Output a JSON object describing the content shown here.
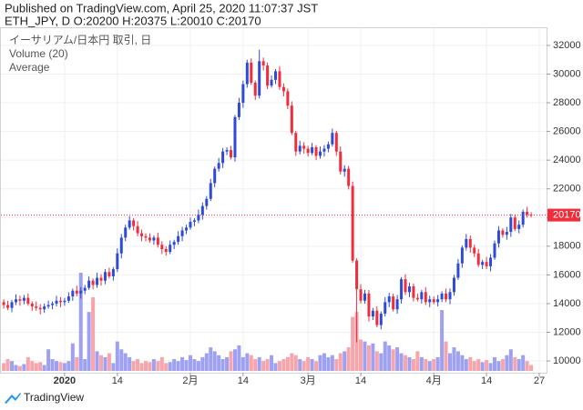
{
  "header": {
    "published": "Published on TradingView.com, April 25, 2020 11:07:37 JST",
    "symbol_line": "ETH_JPY, D O:20200 H:20375 L:20010 C:20170"
  },
  "footer": {
    "brand": "TradingView"
  },
  "chart_data": {
    "type": "candlestick",
    "legend": [
      "イーサリアム/日本円 取引, 日",
      "Volume (20)",
      "Average"
    ],
    "up_color": "#2e4bd8",
    "down_color": "#ef2d3b",
    "volume_up_color": "#9ea0f2",
    "volume_down_color": "#f5a5ab",
    "last_price_color": "#ef2d3b",
    "grid": true,
    "xlim": [
      -0.7,
      133.8
    ],
    "xticks": [
      {
        "value": 15,
        "label": "2020"
      },
      {
        "value": 28,
        "label": "14"
      },
      {
        "value": 46,
        "label": "2月"
      },
      {
        "value": 59,
        "label": "14"
      },
      {
        "value": 75,
        "label": "3月"
      },
      {
        "value": 88,
        "label": "14"
      },
      {
        "value": 106,
        "label": "4月"
      },
      {
        "value": 119,
        "label": "14"
      },
      {
        "value": 132,
        "label": "27"
      }
    ],
    "ylim": [
      9180,
      33200
    ],
    "yticks": [
      10000,
      12000,
      14000,
      16000,
      18000,
      20000,
      22000,
      24000,
      26000,
      28000,
      30000,
      32000
    ],
    "open": [
      14100,
      13900,
      13700,
      14100,
      14300,
      14200,
      14400,
      14000,
      13800,
      13700,
      13600,
      13800,
      13900,
      14000,
      14200,
      14100,
      14200,
      14500,
      14900,
      14700,
      14900,
      15100,
      15600,
      15300,
      15800,
      15600,
      16200,
      15900,
      16400,
      17500,
      18600,
      19300,
      19800,
      19400,
      18900,
      18700,
      18600,
      18400,
      18600,
      18100,
      17800,
      17600,
      18100,
      18300,
      18700,
      19100,
      19300,
      19700,
      19800,
      20200,
      20800,
      21300,
      22400,
      23400,
      23800,
      24600,
      24700,
      24200,
      27000,
      28000,
      29300,
      30800,
      29400,
      28500,
      30900,
      30600,
      29200,
      29600,
      30200,
      29100,
      28800,
      27800,
      25900,
      24600,
      25000,
      24800,
      24500,
      24900,
      24300,
      24600,
      24800,
      25100,
      25900,
      24600,
      23200,
      23400,
      22200,
      17000,
      15000,
      14200,
      14700,
      13100,
      13500,
      12500,
      13300,
      14100,
      14500,
      13600,
      14300,
      15700,
      14800,
      15200,
      14400,
      14300,
      14800,
      14100,
      14300,
      14100,
      14300,
      14700,
      14300,
      14800,
      15800,
      16800,
      17900,
      18500,
      17900,
      17500,
      16700,
      16900,
      16600,
      17200,
      18200,
      19100,
      18800,
      19000,
      20000,
      19200,
      19500,
      20400,
      20200
    ],
    "high": [
      14300,
      14200,
      14250,
      14650,
      14550,
      14600,
      14700,
      14150,
      14150,
      13950,
      14000,
      14200,
      14150,
      14550,
      14450,
      14400,
      14800,
      15050,
      15250,
      15150,
      15300,
      15900,
      15750,
      16150,
      16050,
      16400,
      16500,
      16550,
      17850,
      18850,
      19500,
      20100,
      19950,
      19750,
      19150,
      18900,
      18900,
      18750,
      18950,
      18350,
      18000,
      18400,
      18450,
      19050,
      19350,
      19500,
      20000,
      19950,
      20550,
      21050,
      21500,
      22700,
      23550,
      24150,
      24850,
      24900,
      25000,
      27150,
      28350,
      29550,
      31000,
      31100,
      29550,
      31700,
      31150,
      30800,
      29900,
      30350,
      30550,
      29350,
      29000,
      28100,
      26050,
      25350,
      25250,
      25000,
      25200,
      25050,
      24950,
      25050,
      25300,
      26200,
      26050,
      24950,
      23650,
      23600,
      22500,
      17150,
      15350,
      14950,
      14950,
      13700,
      13800,
      13450,
      14450,
      14750,
      14700,
      14600,
      15850,
      16050,
      15450,
      15400,
      14700,
      14950,
      15150,
      14550,
      14500,
      14600,
      14850,
      15050,
      15050,
      16000,
      17100,
      18050,
      18850,
      18750,
      18100,
      17800,
      17050,
      17250,
      17450,
      18400,
      19400,
      19250,
      19350,
      20250,
      20200,
      19800,
      20550,
      20750,
      20375
    ],
    "low": [
      13650,
      13550,
      13400,
      13900,
      13850,
      13950,
      13850,
      13500,
      13500,
      13250,
      13350,
      13650,
      13600,
      13800,
      13750,
      13850,
      14050,
      14200,
      14500,
      14350,
      14650,
      14950,
      15000,
      15100,
      15250,
      15350,
      15750,
      15600,
      16200,
      17150,
      18350,
      19150,
      19100,
      18700,
      18350,
      18350,
      18250,
      18100,
      17900,
      17450,
      17350,
      17450,
      17800,
      18100,
      18350,
      18850,
      19150,
      19400,
      19600,
      19850,
      20550,
      21150,
      22100,
      23200,
      23450,
      24350,
      24050,
      23900,
      26800,
      27650,
      29050,
      29250,
      28200,
      28300,
      30250,
      28950,
      29050,
      29300,
      28900,
      28450,
      27550,
      25750,
      24300,
      24400,
      24450,
      24250,
      24350,
      24000,
      24100,
      24250,
      24550,
      24950,
      24300,
      23000,
      22850,
      21950,
      16850,
      11300,
      14000,
      14000,
      12750,
      12850,
      12350,
      12200,
      13100,
      13750,
      13450,
      13300,
      14000,
      14600,
      14450,
      14150,
      14150,
      14000,
      13900,
      13750,
      13950,
      13800,
      14100,
      14100,
      13950,
      14550,
      15650,
      16500,
      17700,
      17550,
      17250,
      16550,
      16400,
      16400,
      16250,
      17050,
      17900,
      18600,
      18450,
      18650,
      19050,
      18900,
      19300,
      20000,
      20010
    ],
    "close": [
      13900,
      13700,
      14100,
      14300,
      14200,
      14400,
      14000,
      13800,
      13700,
      13600,
      13800,
      13900,
      14000,
      14200,
      14100,
      14200,
      14500,
      14900,
      14700,
      14900,
      15100,
      15600,
      15300,
      15800,
      15600,
      16200,
      15900,
      16400,
      17500,
      18600,
      19300,
      19800,
      19400,
      18900,
      18700,
      18600,
      18400,
      18600,
      18100,
      17800,
      17600,
      18100,
      18300,
      18700,
      19100,
      19300,
      19700,
      19800,
      20200,
      20800,
      21300,
      22400,
      23400,
      23800,
      24600,
      24700,
      24200,
      27000,
      28000,
      29300,
      30800,
      29400,
      28500,
      30900,
      30600,
      29200,
      29600,
      30200,
      29100,
      28800,
      27800,
      25900,
      24600,
      25000,
      24800,
      24500,
      24900,
      24300,
      24600,
      24800,
      25100,
      25900,
      24600,
      23200,
      23400,
      22200,
      17000,
      15000,
      14200,
      14700,
      13100,
      13500,
      12500,
      13300,
      14100,
      14500,
      13600,
      14300,
      15700,
      14800,
      15200,
      14400,
      14300,
      14800,
      14100,
      14300,
      14100,
      14300,
      14700,
      14300,
      14800,
      15800,
      16800,
      17900,
      18500,
      17900,
      17500,
      16700,
      16900,
      16600,
      17200,
      18200,
      19100,
      18800,
      19000,
      20000,
      19200,
      19500,
      20400,
      20200,
      20170
    ],
    "volume": [
      8,
      12,
      10,
      6,
      5,
      7,
      14,
      10,
      8,
      9,
      6,
      22,
      12,
      10,
      9,
      8,
      10,
      28,
      14,
      100,
      12,
      60,
      75,
      20,
      16,
      14,
      18,
      8,
      30,
      22,
      18,
      14,
      10,
      12,
      8,
      10,
      9,
      12,
      10,
      14,
      8,
      9,
      12,
      10,
      14,
      11,
      16,
      12,
      10,
      14,
      18,
      24,
      20,
      16,
      12,
      14,
      20,
      22,
      26,
      14,
      18,
      16,
      12,
      14,
      10,
      12,
      16,
      8,
      10,
      12,
      14,
      18,
      16,
      12,
      10,
      14,
      12,
      10,
      16,
      18,
      14,
      16,
      12,
      18,
      20,
      24,
      55,
      60,
      32,
      30,
      26,
      28,
      20,
      18,
      30,
      26,
      22,
      24,
      18,
      16,
      14,
      12,
      20,
      14,
      12,
      10,
      12,
      14,
      62,
      30,
      18,
      24,
      20,
      16,
      12,
      14,
      10,
      12,
      9,
      11,
      8,
      14,
      10,
      12,
      16,
      22,
      14,
      12,
      16,
      10,
      6
    ]
  }
}
